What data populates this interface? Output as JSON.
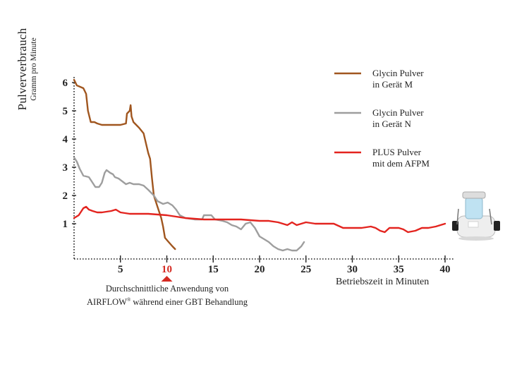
{
  "chart_data": {
    "type": "line",
    "ylabel": "Pulververbrauch",
    "ylabel_sub": "Gramm pro Minute",
    "xlabel": "Betriebszeit in Minuten",
    "xlim": [
      0,
      41
    ],
    "ylim": [
      0,
      6.3
    ],
    "x_ticks": [
      5,
      10,
      15,
      20,
      25,
      30,
      35,
      40
    ],
    "y_ticks": [
      1,
      2,
      3,
      4,
      5,
      6
    ],
    "highlight_x": 10,
    "highlight_color": "#d42a22",
    "annotation": {
      "line1": "Durchschnittliche Anwendung von",
      "line2_pre": "AIRFLOW",
      "line2_sup": "®",
      "line2_post": " während einer GBT Behandlung"
    },
    "series": [
      {
        "name_line1": "Glycin Pulver",
        "name_line2": "in Gerät M",
        "color": "#a0561f",
        "points": [
          [
            0,
            6.1
          ],
          [
            0.3,
            5.9
          ],
          [
            1.0,
            5.8
          ],
          [
            1.3,
            5.6
          ],
          [
            1.5,
            5.0
          ],
          [
            1.8,
            4.6
          ],
          [
            2.2,
            4.6
          ],
          [
            2.5,
            4.55
          ],
          [
            3.0,
            4.5
          ],
          [
            4.0,
            4.5
          ],
          [
            5.0,
            4.5
          ],
          [
            5.6,
            4.55
          ],
          [
            5.7,
            4.9
          ],
          [
            6.0,
            5.0
          ],
          [
            6.1,
            5.2
          ],
          [
            6.2,
            4.8
          ],
          [
            6.4,
            4.6
          ],
          [
            7.0,
            4.4
          ],
          [
            7.5,
            4.2
          ],
          [
            8.0,
            3.5
          ],
          [
            8.2,
            3.3
          ],
          [
            8.4,
            2.6
          ],
          [
            8.6,
            2.0
          ],
          [
            9.0,
            1.6
          ],
          [
            9.4,
            1.2
          ],
          [
            9.6,
            0.9
          ],
          [
            9.8,
            0.5
          ],
          [
            10.2,
            0.35
          ],
          [
            10.6,
            0.2
          ],
          [
            10.9,
            0.1
          ]
        ]
      },
      {
        "name_line1": "Glycin Pulver",
        "name_line2": "in Gerät N",
        "color": "#9e9e9e",
        "points": [
          [
            0,
            3.35
          ],
          [
            0.3,
            3.2
          ],
          [
            0.6,
            2.95
          ],
          [
            1.0,
            2.7
          ],
          [
            1.6,
            2.65
          ],
          [
            2.0,
            2.45
          ],
          [
            2.3,
            2.3
          ],
          [
            2.7,
            2.3
          ],
          [
            3.0,
            2.45
          ],
          [
            3.3,
            2.8
          ],
          [
            3.5,
            2.9
          ],
          [
            3.9,
            2.8
          ],
          [
            4.2,
            2.75
          ],
          [
            4.4,
            2.65
          ],
          [
            4.8,
            2.6
          ],
          [
            5.2,
            2.5
          ],
          [
            5.6,
            2.4
          ],
          [
            6.0,
            2.45
          ],
          [
            6.4,
            2.4
          ],
          [
            7.0,
            2.4
          ],
          [
            7.5,
            2.35
          ],
          [
            8.0,
            2.2
          ],
          [
            8.6,
            2.0
          ],
          [
            9.0,
            1.8
          ],
          [
            9.6,
            1.7
          ],
          [
            10.1,
            1.75
          ],
          [
            10.6,
            1.65
          ],
          [
            11.0,
            1.5
          ],
          [
            11.4,
            1.3
          ],
          [
            12.0,
            1.2
          ],
          [
            13.0,
            1.15
          ],
          [
            13.8,
            1.15
          ],
          [
            14.0,
            1.3
          ],
          [
            14.8,
            1.3
          ],
          [
            15.2,
            1.15
          ],
          [
            16.0,
            1.1
          ],
          [
            16.5,
            1.05
          ],
          [
            17.0,
            0.95
          ],
          [
            17.5,
            0.9
          ],
          [
            18.0,
            0.8
          ],
          [
            18.5,
            1.0
          ],
          [
            19.0,
            1.05
          ],
          [
            19.5,
            0.85
          ],
          [
            20.0,
            0.55
          ],
          [
            20.5,
            0.45
          ],
          [
            21.0,
            0.35
          ],
          [
            21.5,
            0.2
          ],
          [
            22.0,
            0.1
          ],
          [
            22.5,
            0.05
          ],
          [
            23.0,
            0.1
          ],
          [
            23.5,
            0.05
          ],
          [
            24.0,
            0.05
          ],
          [
            24.5,
            0.2
          ],
          [
            24.8,
            0.35
          ]
        ]
      },
      {
        "name_line1": "PLUS Pulver",
        "name_line2": "mit dem AFPM",
        "color": "#e3241f",
        "points": [
          [
            0,
            1.2
          ],
          [
            0.5,
            1.3
          ],
          [
            1.0,
            1.55
          ],
          [
            1.3,
            1.6
          ],
          [
            1.6,
            1.5
          ],
          [
            2.0,
            1.45
          ],
          [
            2.5,
            1.4
          ],
          [
            3.0,
            1.4
          ],
          [
            4.0,
            1.45
          ],
          [
            4.5,
            1.5
          ],
          [
            5.0,
            1.4
          ],
          [
            6.0,
            1.35
          ],
          [
            8.0,
            1.35
          ],
          [
            10.0,
            1.3
          ],
          [
            12.0,
            1.2
          ],
          [
            14.0,
            1.15
          ],
          [
            16.0,
            1.15
          ],
          [
            18.0,
            1.15
          ],
          [
            20.0,
            1.1
          ],
          [
            21.0,
            1.1
          ],
          [
            22.0,
            1.05
          ],
          [
            22.5,
            1.0
          ],
          [
            23.0,
            0.95
          ],
          [
            23.5,
            1.05
          ],
          [
            24.0,
            0.95
          ],
          [
            24.5,
            1.0
          ],
          [
            25.0,
            1.05
          ],
          [
            26.0,
            1.0
          ],
          [
            27.0,
            1.0
          ],
          [
            28.0,
            1.0
          ],
          [
            29.0,
            0.85
          ],
          [
            30.0,
            0.85
          ],
          [
            31.0,
            0.85
          ],
          [
            32.0,
            0.9
          ],
          [
            32.5,
            0.85
          ],
          [
            33.0,
            0.75
          ],
          [
            33.5,
            0.7
          ],
          [
            34.0,
            0.85
          ],
          [
            35.0,
            0.85
          ],
          [
            35.5,
            0.8
          ],
          [
            36.0,
            0.7
          ],
          [
            36.8,
            0.75
          ],
          [
            37.5,
            0.85
          ],
          [
            38.2,
            0.85
          ],
          [
            39.0,
            0.9
          ],
          [
            39.5,
            0.95
          ],
          [
            40.0,
            1.0
          ]
        ]
      }
    ]
  }
}
